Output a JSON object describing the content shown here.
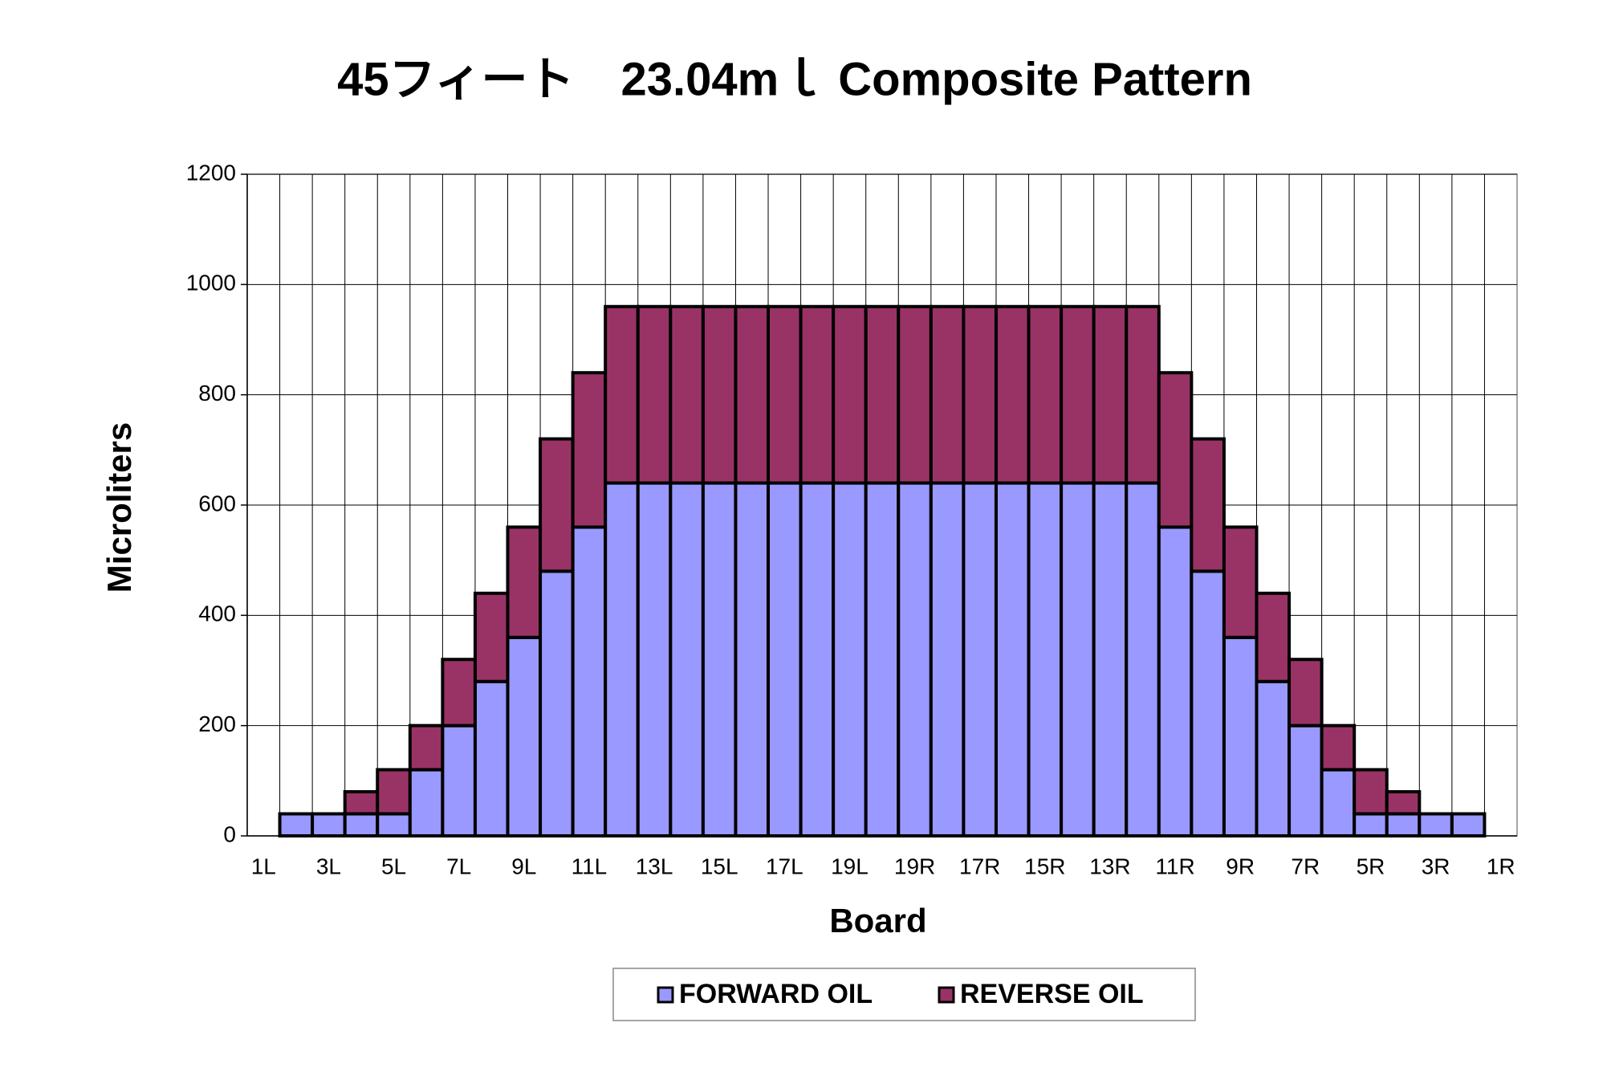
{
  "chart_data": {
    "type": "stacked_bar",
    "title": "45フィート　23.04mｌ  Composite Pattern",
    "x_label": "Board",
    "y_label": "Microliters",
    "categories": [
      "1L",
      null,
      "3L",
      null,
      "5L",
      null,
      "7L",
      null,
      "9L",
      null,
      "11L",
      null,
      "13L",
      null,
      "15L",
      null,
      "17L",
      null,
      "19L",
      null,
      "19R",
      null,
      "17R",
      null,
      "15R",
      null,
      "13R",
      null,
      "11R",
      null,
      "9R",
      null,
      "7R",
      null,
      "5R",
      null,
      "3R",
      null,
      "1R"
    ],
    "series": [
      {
        "name": "FORWARD OIL",
        "color": "#9999ff",
        "values": [
          null,
          40,
          40,
          40,
          40,
          120,
          200,
          280,
          360,
          480,
          560,
          640,
          640,
          640,
          640,
          640,
          640,
          640,
          640,
          640,
          640,
          640,
          640,
          640,
          640,
          640,
          640,
          640,
          560,
          480,
          360,
          280,
          200,
          120,
          40,
          40,
          40,
          40,
          null
        ]
      },
      {
        "name": "REVERSE OIL",
        "color": "#993366",
        "values": [
          null,
          0,
          0,
          40,
          80,
          80,
          120,
          160,
          200,
          240,
          280,
          320,
          320,
          320,
          320,
          320,
          320,
          320,
          320,
          320,
          320,
          320,
          320,
          320,
          320,
          320,
          320,
          320,
          280,
          240,
          200,
          160,
          120,
          80,
          80,
          40,
          0,
          0,
          null
        ]
      }
    ],
    "ylim": [
      0,
      1200
    ],
    "yticks": [
      0,
      200,
      400,
      600,
      800,
      1000,
      1200
    ],
    "grid": true,
    "legend": "bottom"
  }
}
